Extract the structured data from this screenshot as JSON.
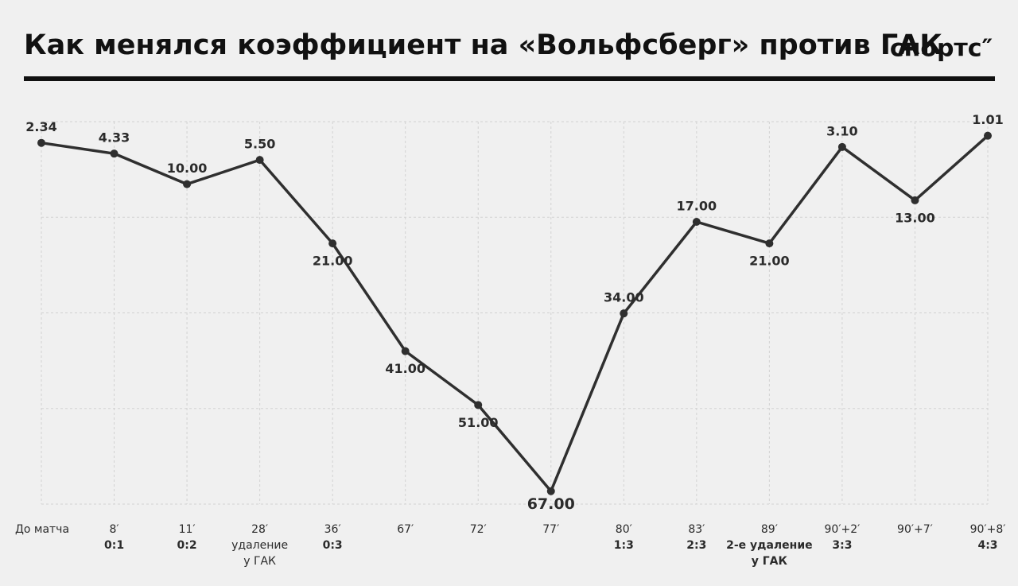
{
  "chart_data": {
    "type": "line",
    "title": "Как менялся коэффициент на «Вольфсберг» против ГАК",
    "logo": "спортс″",
    "categories": [
      "До матча",
      "8′",
      "11′",
      "28′",
      "36′",
      "67′",
      "72′",
      "77′",
      "80′",
      "83′",
      "89′",
      "90′+2′",
      "90′+7′",
      "90′+8′"
    ],
    "events": [
      null,
      "0:1",
      "0:2",
      "удаление у ГАК",
      "0:3",
      null,
      null,
      null,
      "1:3",
      "2:3",
      "2-е удаление у ГАК",
      "3:3",
      null,
      "4:3"
    ],
    "values": [
      2.34,
      4.33,
      10,
      5.5,
      21,
      41,
      51,
      67,
      34,
      17,
      21,
      3.1,
      13,
      1.01
    ],
    "value_labels": [
      "2.34",
      "4.33",
      "10.00",
      "5.50",
      "21.00",
      "41.00",
      "51.00",
      "67.00",
      "34.00",
      "17.00",
      "21.00",
      "3.10",
      "13.00",
      "1.01"
    ],
    "label_positions": [
      "above",
      "above",
      "above",
      "above",
      "below",
      "below",
      "below",
      "below",
      "above",
      "above",
      "below",
      "above",
      "below",
      "above"
    ],
    "color": "#2f2f2f",
    "ylim": [
      -1.6,
      69.4
    ],
    "y_reversed": true,
    "yticks": [
      -1.6,
      16.15,
      33.9,
      51.65,
      69.4
    ],
    "show_ytick_labels": false,
    "grid": true
  }
}
